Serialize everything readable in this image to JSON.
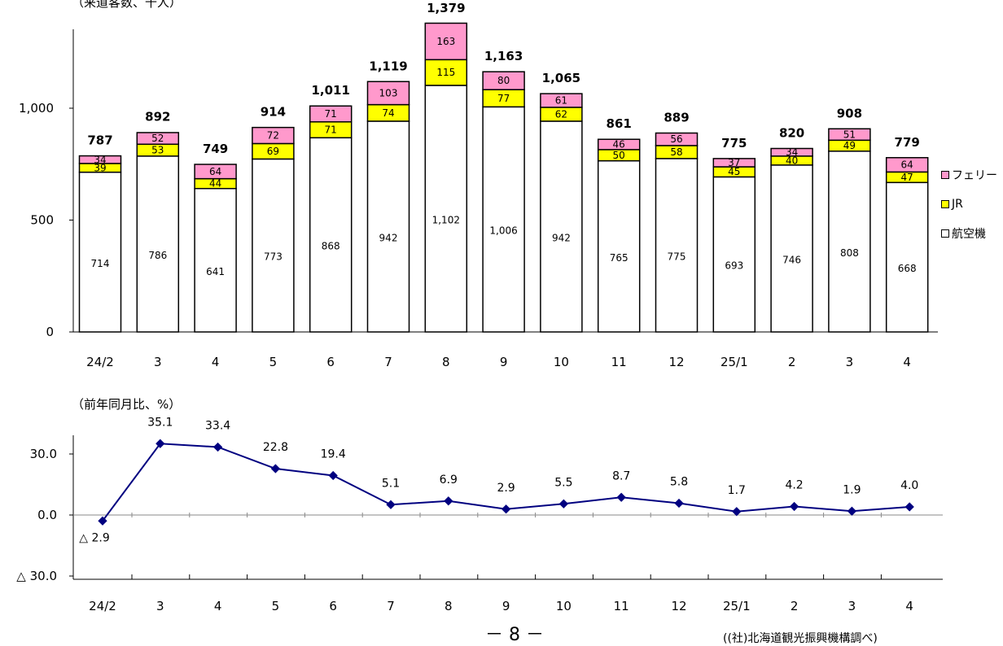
{
  "bar_chart_unit": "（来道客数、千人）",
  "line_chart_unit": "（前年同月比、%）",
  "page_number": "－ 8 －",
  "source_note": "((社)北海道観光振興機構調べ)",
  "colors": {
    "ferry": "#FF99CC",
    "jr": "#FFFF00",
    "air": "#FFFFFF",
    "line": "#000080"
  },
  "chart_data": [
    {
      "type": "bar",
      "stacked": true,
      "categories": [
        "24/2",
        "3",
        "4",
        "5",
        "6",
        "7",
        "8",
        "9",
        "10",
        "11",
        "12",
        "25/1",
        "2",
        "3",
        "4"
      ],
      "series": [
        {
          "name": "航空機",
          "values": [
            714,
            786,
            641,
            773,
            868,
            942,
            1102,
            1006,
            942,
            765,
            775,
            693,
            746,
            808,
            668
          ]
        },
        {
          "name": "JR",
          "values": [
            39,
            53,
            44,
            69,
            71,
            74,
            115,
            77,
            62,
            50,
            58,
            45,
            40,
            49,
            47
          ]
        },
        {
          "name": "フェリー",
          "values": [
            34,
            52,
            64,
            72,
            71,
            103,
            163,
            80,
            61,
            46,
            56,
            37,
            34,
            51,
            64
          ]
        }
      ],
      "totals": [
        787,
        892,
        749,
        914,
        1011,
        1119,
        1379,
        1163,
        1065,
        861,
        889,
        775,
        820,
        908,
        779
      ],
      "value_labels": [
        [
          "714",
          "786",
          "641",
          "773",
          "868",
          "942",
          "1,102",
          "1,006",
          "942",
          "765",
          "775",
          "693",
          "746",
          "808",
          "668"
        ],
        [
          "39",
          "53",
          "44",
          "69",
          "71",
          "74",
          "115",
          "77",
          "62",
          "50",
          "58",
          "45",
          "40",
          "49",
          "47"
        ],
        [
          "34",
          "52",
          "64",
          "72",
          "71",
          "103",
          "163",
          "80",
          "61",
          "46",
          "56",
          "37",
          "34",
          "51",
          "64"
        ]
      ],
      "total_labels": [
        "787",
        "892",
        "749",
        "914",
        "1,011",
        "1,119",
        "1,379",
        "1,163",
        "1,065",
        "861",
        "889",
        "775",
        "820",
        "908",
        "779"
      ],
      "yticks": [
        0,
        500,
        1000
      ],
      "ytick_labels": [
        "0",
        "500",
        "1,000"
      ],
      "ylim": [
        0,
        1400
      ],
      "legend": [
        "フェリー",
        "JR",
        "航空機"
      ],
      "legend_position": "right"
    },
    {
      "type": "line",
      "categories": [
        "24/2",
        "3",
        "4",
        "5",
        "6",
        "7",
        "8",
        "9",
        "10",
        "11",
        "12",
        "25/1",
        "2",
        "3",
        "4"
      ],
      "values": [
        -2.9,
        35.1,
        33.4,
        22.8,
        19.4,
        5.1,
        6.9,
        2.9,
        5.5,
        8.7,
        5.8,
        1.7,
        4.2,
        1.9,
        4.0
      ],
      "value_labels": [
        "△ 2.9",
        "35.1",
        "33.4",
        "22.8",
        "19.4",
        "5.1",
        "6.9",
        "2.9",
        "5.5",
        "8.7",
        "5.8",
        "1.7",
        "4.2",
        "1.9",
        "4.0"
      ],
      "yticks": [
        -30,
        0,
        30
      ],
      "ytick_labels": [
        "△ 30.0",
        "0.0",
        "30.0"
      ],
      "ylim": [
        -30,
        45
      ],
      "grid": false
    }
  ]
}
